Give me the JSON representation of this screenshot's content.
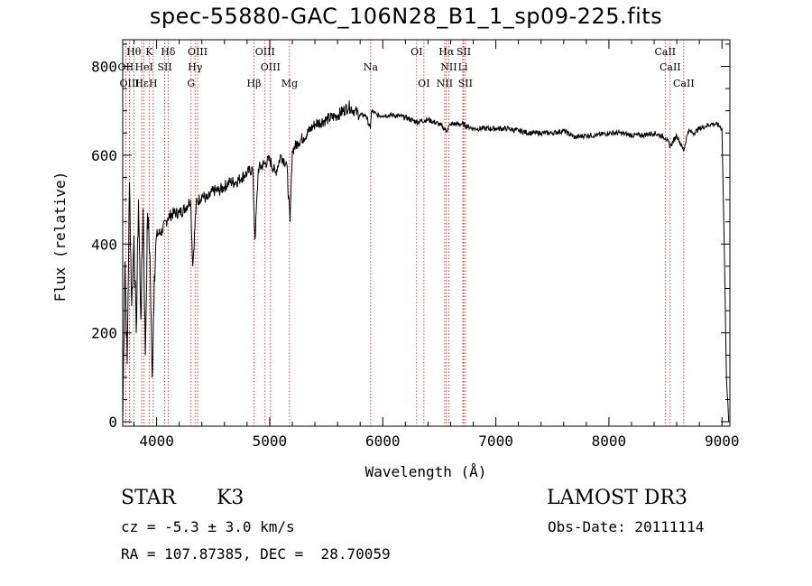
{
  "header": {
    "title": "spec-55880-GAC_106N28_B1_1_sp09-225.fits"
  },
  "info": {
    "class": "STAR",
    "subclass": "K3",
    "survey": "LAMOST DR3",
    "cz": "cz = -5.3 ± 3.0 km/s",
    "obs_date": "Obs-Date: 20111114",
    "coords": "RA = 107.87385, DEC =  28.70059"
  },
  "colors": {
    "spectrum": "#000000",
    "line_markers": "#b22222",
    "axes": "#000000",
    "background": "#ffffff"
  },
  "chart_data": {
    "type": "line",
    "title": "spec-55880-GAC_106N28_B1_1_sp09-225.fits",
    "xlabel": "Wavelength (Å)",
    "ylabel": "Flux (relative)",
    "xlim": [
      3700,
      9070
    ],
    "ylim": [
      -10,
      860
    ],
    "xticks": [
      4000,
      5000,
      6000,
      7000,
      8000,
      9000
    ],
    "yticks": [
      0,
      200,
      400,
      600,
      800
    ],
    "series": [
      {
        "name": "flux",
        "x": [
          3700,
          3720,
          3740,
          3760,
          3780,
          3800,
          3820,
          3840,
          3860,
          3880,
          3900,
          3920,
          3940,
          3960,
          3980,
          4000,
          4050,
          4100,
          4150,
          4200,
          4250,
          4300,
          4320,
          4350,
          4400,
          4450,
          4500,
          4550,
          4600,
          4650,
          4700,
          4750,
          4800,
          4850,
          4870,
          4900,
          4950,
          5000,
          5050,
          5100,
          5150,
          5180,
          5200,
          5250,
          5300,
          5400,
          5500,
          5600,
          5700,
          5750,
          5800,
          5850,
          5890,
          5900,
          5950,
          6000,
          6100,
          6200,
          6300,
          6400,
          6500,
          6563,
          6600,
          6700,
          6800,
          6900,
          7000,
          7100,
          7200,
          7300,
          7400,
          7500,
          7600,
          7700,
          7800,
          7900,
          8000,
          8100,
          8200,
          8300,
          8400,
          8500,
          8542,
          8600,
          8662,
          8700,
          8750,
          8800,
          8850,
          8900,
          8950,
          8980,
          9000,
          9020,
          9040,
          9060
        ],
        "y": [
          0,
          360,
          130,
          540,
          260,
          420,
          200,
          500,
          230,
          480,
          150,
          470,
          380,
          100,
          330,
          420,
          430,
          460,
          470,
          470,
          480,
          500,
          350,
          490,
          510,
          500,
          520,
          520,
          530,
          540,
          540,
          550,
          560,
          570,
          410,
          570,
          580,
          590,
          560,
          600,
          580,
          450,
          610,
          630,
          640,
          670,
          680,
          690,
          710,
          700,
          690,
          690,
          660,
          700,
          690,
          690,
          690,
          685,
          675,
          680,
          670,
          655,
          670,
          670,
          660,
          660,
          660,
          660,
          655,
          650,
          650,
          650,
          655,
          640,
          645,
          645,
          650,
          650,
          645,
          645,
          650,
          640,
          620,
          645,
          610,
          655,
          650,
          660,
          665,
          670,
          670,
          665,
          660,
          400,
          100,
          0
        ]
      }
    ],
    "lines_top": [
      {
        "label": "Hθ",
        "x": 3798
      },
      {
        "label": "K",
        "x": 3934
      },
      {
        "label": "Hδ",
        "x": 4102
      },
      {
        "label": "OIII",
        "x": 4363
      },
      {
        "label": "OIII",
        "x": 4959
      },
      {
        "label": "OI",
        "x": 6300
      },
      {
        "label": "Hα",
        "x": 6563
      },
      {
        "label": "SII",
        "x": 6716
      },
      {
        "label": "CaII",
        "x": 8498
      }
    ],
    "lines_mid": [
      {
        "label": "OII",
        "x": 3727
      },
      {
        "label": "HeI",
        "x": 3889
      },
      {
        "label": "SII",
        "x": 4072
      },
      {
        "label": "Hγ",
        "x": 4340
      },
      {
        "label": "OIII",
        "x": 5007
      },
      {
        "label": "Na",
        "x": 5893
      },
      {
        "label": "NII",
        "x": 6584
      },
      {
        "label": "Li",
        "x": 6708
      },
      {
        "label": "CaII",
        "x": 8542
      }
    ],
    "lines_low": [
      {
        "label": "OIII",
        "x": 3760
      },
      {
        "label": "Hε",
        "x": 3868
      },
      {
        "label": "H",
        "x": 3970
      },
      {
        "label": "G",
        "x": 4305
      },
      {
        "label": "Hβ",
        "x": 4861
      },
      {
        "label": "Mg",
        "x": 5175
      },
      {
        "label": "OI",
        "x": 6364
      },
      {
        "label": "NII",
        "x": 6548
      },
      {
        "label": "SII",
        "x": 6731
      },
      {
        "label": "CaII",
        "x": 8662
      }
    ]
  }
}
